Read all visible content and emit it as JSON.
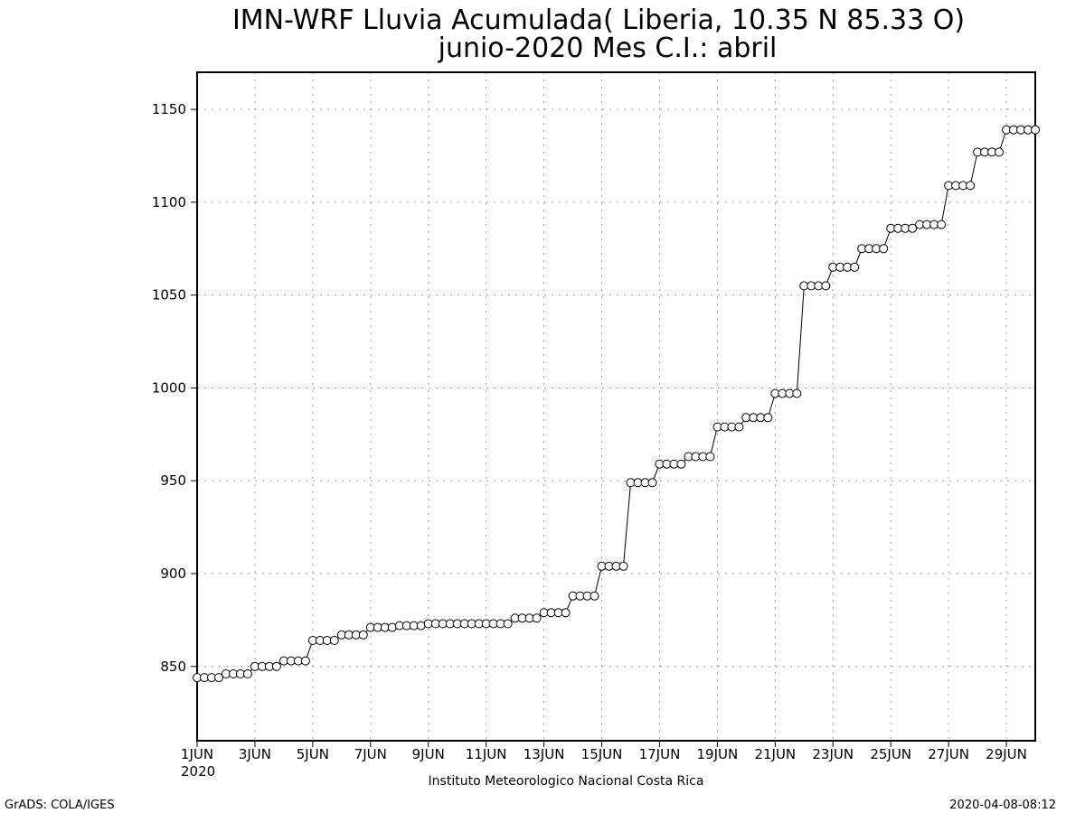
{
  "chart_data": {
    "type": "line",
    "title": "IMN-WRF  Lluvia Acumulada( Liberia, 10.35  N 85.33  O)",
    "subtitle": "junio-2020 Mes C.I.: abril",
    "xlabel": "",
    "ylabel": "",
    "xlim": [
      1,
      30
    ],
    "ylim": [
      810,
      1170
    ],
    "grid": true,
    "marker": "open-circle",
    "yticks": [
      850,
      900,
      950,
      1000,
      1050,
      1100,
      1150
    ],
    "xticks": [
      {
        "x": 1,
        "label": "1JUN"
      },
      {
        "x": 3,
        "label": "3JUN"
      },
      {
        "x": 5,
        "label": "5JUN"
      },
      {
        "x": 7,
        "label": "7JUN"
      },
      {
        "x": 9,
        "label": "9JUN"
      },
      {
        "x": 11,
        "label": "11JUN"
      },
      {
        "x": 13,
        "label": "13JUN"
      },
      {
        "x": 15,
        "label": "15JUN"
      },
      {
        "x": 17,
        "label": "17JUN"
      },
      {
        "x": 19,
        "label": "19JUN"
      },
      {
        "x": 21,
        "label": "21JUN"
      },
      {
        "x": 23,
        "label": "23JUN"
      },
      {
        "x": 25,
        "label": "25JUN"
      },
      {
        "x": 27,
        "label": "27JUN"
      },
      {
        "x": 29,
        "label": "29JUN"
      }
    ],
    "year_label": "2020",
    "daily_values": [
      844,
      846,
      850,
      853,
      864,
      867,
      871,
      872,
      873,
      873,
      873,
      876,
      879,
      888,
      904,
      949,
      959,
      963,
      979,
      984,
      997,
      1055,
      1065,
      1075,
      1086,
      1088,
      1109,
      1127,
      1139,
      1139
    ]
  },
  "footer": {
    "institution": "Instituto Meteorologico Nacional Costa Rica",
    "credit": "GrADS: COLA/IGES",
    "timestamp": "2020-04-08-08:12"
  }
}
